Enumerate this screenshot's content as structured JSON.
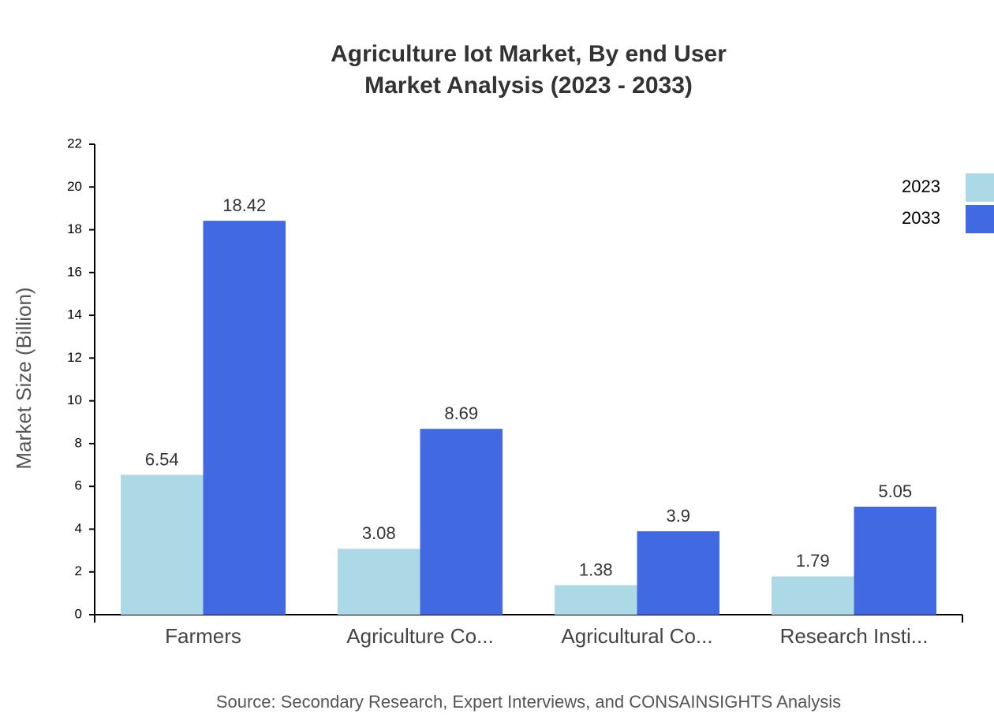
{
  "chart_data": {
    "type": "bar",
    "title": "Agriculture Iot Market, By end User",
    "subtitle": "Market Analysis (2023 - 2033)",
    "y_label": "Market Size (Billion)",
    "source": "Source: Secondary Research, Expert Interviews, and CONSAINSIGHTS Analysis",
    "categories": [
      "Farmers",
      "Agriculture Co...",
      "Agricultural Co...",
      "Research Insti..."
    ],
    "series": [
      {
        "name": "2023",
        "color": "#add8e6",
        "values": [
          6.54,
          3.08,
          1.38,
          1.79
        ]
      },
      {
        "name": "2033",
        "color": "#4169e1",
        "values": [
          18.42,
          8.69,
          3.9,
          5.05
        ]
      }
    ],
    "ylim": [
      0,
      22
    ],
    "yticks": [
      0,
      2,
      4,
      6,
      8,
      10,
      12,
      14,
      16,
      18,
      20,
      22
    ],
    "legend": "top-right"
  }
}
